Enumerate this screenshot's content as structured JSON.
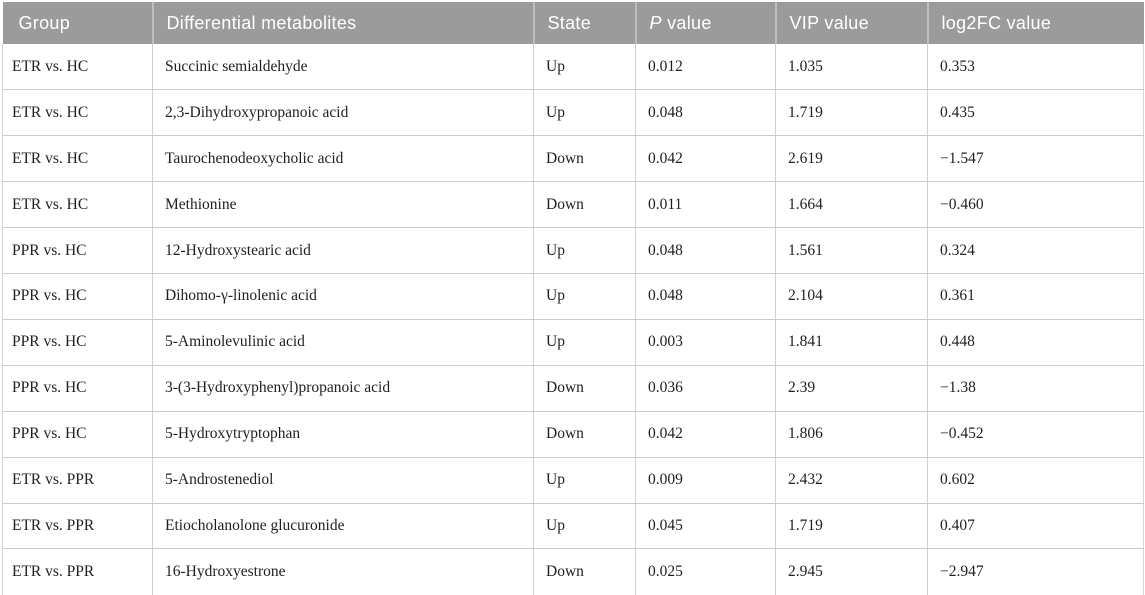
{
  "table": {
    "headers": [
      {
        "italic": "",
        "text": "Group"
      },
      {
        "italic": "",
        "text": "Differential metabolites"
      },
      {
        "italic": "",
        "text": "State"
      },
      {
        "italic": "P",
        "text": " value"
      },
      {
        "italic": "",
        "text": "VIP value"
      },
      {
        "italic": "",
        "text": "log2FC value"
      }
    ],
    "rows": [
      {
        "group": "ETR vs. HC",
        "metabolite": "Succinic semialdehyde",
        "state": "Up",
        "p_value": "0.012",
        "vip_value": "1.035",
        "log2fc_value": "0.353"
      },
      {
        "group": "ETR vs. HC",
        "metabolite": "2,3-Dihydroxypropanoic acid",
        "state": "Up",
        "p_value": "0.048",
        "vip_value": "1.719",
        "log2fc_value": "0.435"
      },
      {
        "group": "ETR vs. HC",
        "metabolite": "Taurochenodeoxycholic acid",
        "state": "Down",
        "p_value": "0.042",
        "vip_value": "2.619",
        "log2fc_value": "−1.547"
      },
      {
        "group": "ETR vs. HC",
        "metabolite": "Methionine",
        "state": "Down",
        "p_value": "0.011",
        "vip_value": "1.664",
        "log2fc_value": "−0.460"
      },
      {
        "group": "PPR vs. HC",
        "metabolite": "12-Hydroxystearic acid",
        "state": "Up",
        "p_value": "0.048",
        "vip_value": "1.561",
        "log2fc_value": "0.324"
      },
      {
        "group": "PPR vs. HC",
        "metabolite": "Dihomo-γ-linolenic acid",
        "state": "Up",
        "p_value": "0.048",
        "vip_value": "2.104",
        "log2fc_value": "0.361"
      },
      {
        "group": "PPR vs. HC",
        "metabolite": "5-Aminolevulinic acid",
        "state": "Up",
        "p_value": "0.003",
        "vip_value": "1.841",
        "log2fc_value": "0.448"
      },
      {
        "group": "PPR vs. HC",
        "metabolite": "3-(3-Hydroxyphenyl)propanoic acid",
        "state": "Down",
        "p_value": "0.036",
        "vip_value": "2.39",
        "log2fc_value": "−1.38"
      },
      {
        "group": "PPR vs. HC",
        "metabolite": "5-Hydroxytryptophan",
        "state": "Down",
        "p_value": "0.042",
        "vip_value": "1.806",
        "log2fc_value": "−0.452"
      },
      {
        "group": "ETR vs. PPR",
        "metabolite": "5-Androstenediol",
        "state": "Up",
        "p_value": "0.009",
        "vip_value": "2.432",
        "log2fc_value": "0.602"
      },
      {
        "group": "ETR vs. PPR",
        "metabolite": "Etiocholanolone glucuronide",
        "state": "Up",
        "p_value": "0.045",
        "vip_value": "1.719",
        "log2fc_value": "0.407"
      },
      {
        "group": "ETR vs. PPR",
        "metabolite": "16-Hydroxyestrone",
        "state": "Down",
        "p_value": "0.025",
        "vip_value": "2.945",
        "log2fc_value": "−2.947"
      }
    ]
  },
  "colors": {
    "header_bg": "#9b9b9b",
    "header_text": "#ffffff",
    "header_divider": "#bdbdbd",
    "body_text": "#1f1f1f",
    "row_border": "#cccccc",
    "page_bg": "#ffffff"
  }
}
